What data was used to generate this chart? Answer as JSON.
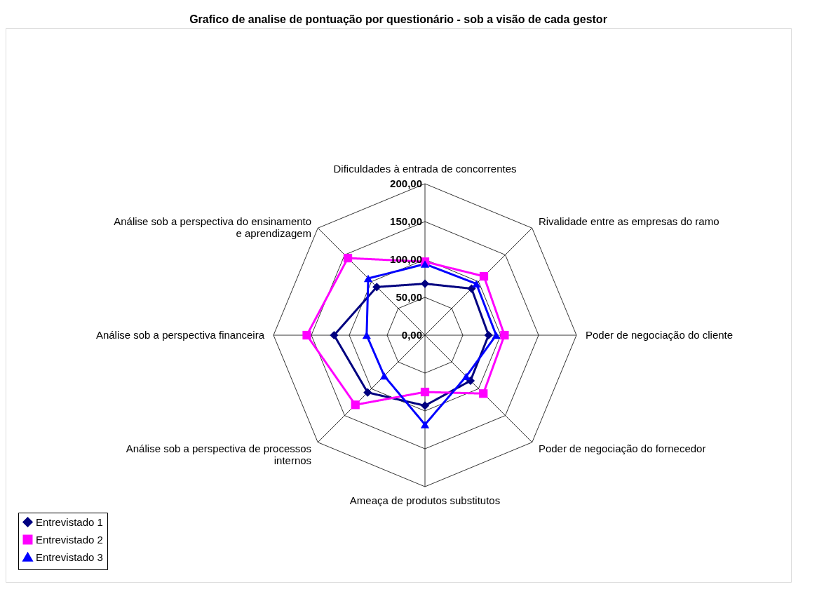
{
  "chart_data": {
    "type": "radar",
    "title": "Grafico de analise de pontuação por questionário - sob a visão de cada gestor",
    "categories": [
      "Dificuldades à entrada de concorrentes",
      "Rivalidade entre as empresas do ramo",
      "Poder de negociação do cliente",
      "Poder de negociação do fornecedor",
      "Ameaça de produtos substitutos",
      "Análise sob a perspectiva de processos internos",
      "Análise sob a perspectiva financeira",
      "Análise sob a perspectiva do ensinamento e aprendizagem"
    ],
    "series": [
      {
        "name": "Entrevistado 1",
        "color": "#000080",
        "marker": "diamond",
        "values": [
          68,
          87,
          84,
          85,
          93,
          107,
          120,
          90
        ]
      },
      {
        "name": "Entrevistado 2",
        "color": "#ff00ff",
        "marker": "square",
        "values": [
          97,
          110,
          105,
          109,
          75,
          130,
          156,
          144
        ]
      },
      {
        "name": "Entrevistado 3",
        "color": "#0000ff",
        "marker": "triangle",
        "values": [
          94,
          96,
          94,
          77,
          118,
          76,
          77,
          106
        ]
      }
    ],
    "ylim": [
      0,
      200
    ],
    "yticks": [
      {
        "value": 0,
        "label": "0,00"
      },
      {
        "value": 50,
        "label": "50,00"
      },
      {
        "value": 100,
        "label": "100,00"
      },
      {
        "value": 150,
        "label": "150,00"
      },
      {
        "value": 200,
        "label": "200,00"
      }
    ],
    "grid": true,
    "legend": "bottom left",
    "line_style": "solid"
  }
}
